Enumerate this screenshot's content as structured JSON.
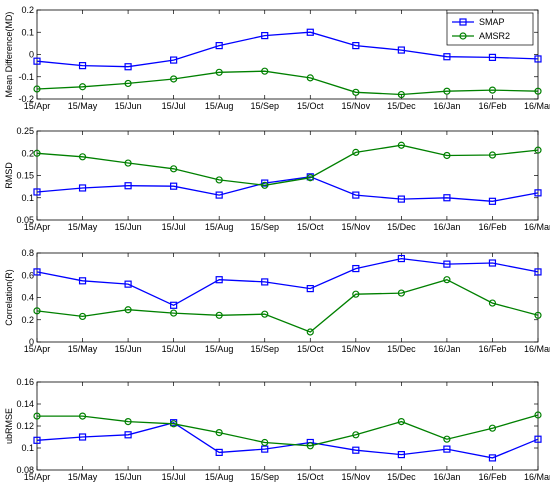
{
  "chart_data": [
    {
      "type": "line",
      "ylabel": "Mean Difference(MD)",
      "ylim": [
        -0.2,
        0.2
      ],
      "yticks": [
        "-0.2",
        "-0.1",
        "0",
        "0.1",
        "0.2"
      ],
      "categories": [
        "15/Apr",
        "15/May",
        "15/Jun",
        "15/Jul",
        "15/Aug",
        "15/Sep",
        "15/Oct",
        "15/Nov",
        "15/Dec",
        "16/Jan",
        "16/Feb",
        "16/Mar"
      ],
      "legend": {
        "position": "top-right"
      },
      "series": [
        {
          "name": "SMAP",
          "color": "#0000ff",
          "marker": "square",
          "values": [
            -0.03,
            -0.05,
            -0.055,
            -0.025,
            0.04,
            0.085,
            0.1,
            0.04,
            0.02,
            -0.01,
            -0.013,
            -0.02
          ]
        },
        {
          "name": "AMSR2",
          "color": "#008000",
          "marker": "circle",
          "values": [
            -0.155,
            -0.145,
            -0.13,
            -0.11,
            -0.08,
            -0.075,
            -0.105,
            -0.17,
            -0.18,
            -0.165,
            -0.16,
            -0.165
          ]
        }
      ]
    },
    {
      "type": "line",
      "ylabel": "RMSD",
      "ylim": [
        0.05,
        0.25
      ],
      "yticks": [
        "0.05",
        "0.1",
        "0.15",
        "0.2",
        "0.25"
      ],
      "categories": [
        "15/Apr",
        "15/May",
        "15/Jun",
        "15/Jul",
        "15/Aug",
        "15/Sep",
        "15/Oct",
        "15/Nov",
        "15/Dec",
        "16/Jan",
        "16/Feb",
        "16/Mar"
      ],
      "series": [
        {
          "name": "SMAP",
          "color": "#0000ff",
          "marker": "square",
          "values": [
            0.113,
            0.122,
            0.127,
            0.126,
            0.106,
            0.133,
            0.147,
            0.106,
            0.097,
            0.1,
            0.092,
            0.111
          ]
        },
        {
          "name": "AMSR2",
          "color": "#008000",
          "marker": "circle",
          "values": [
            0.2,
            0.192,
            0.178,
            0.165,
            0.14,
            0.128,
            0.145,
            0.202,
            0.218,
            0.195,
            0.196,
            0.207
          ]
        }
      ]
    },
    {
      "type": "line",
      "ylabel": "Correlation(R)",
      "ylim": [
        0,
        0.8
      ],
      "yticks": [
        "0",
        "0.2",
        "0.4",
        "0.6",
        "0.8"
      ],
      "categories": [
        "15/Apr",
        "15/May",
        "15/Jun",
        "15/Jul",
        "15/Aug",
        "15/Sep",
        "15/Oct",
        "15/Nov",
        "15/Dec",
        "16/Jan",
        "16/Feb",
        "16/Mar"
      ],
      "series": [
        {
          "name": "SMAP",
          "color": "#0000ff",
          "marker": "square",
          "values": [
            0.63,
            0.55,
            0.52,
            0.33,
            0.56,
            0.54,
            0.48,
            0.66,
            0.75,
            0.7,
            0.71,
            0.63
          ]
        },
        {
          "name": "AMSR2",
          "color": "#008000",
          "marker": "circle",
          "values": [
            0.28,
            0.23,
            0.29,
            0.26,
            0.24,
            0.25,
            0.09,
            0.43,
            0.44,
            0.56,
            0.35,
            0.24
          ]
        }
      ]
    },
    {
      "type": "line",
      "ylabel": "ubRMSE",
      "ylim": [
        0.08,
        0.16
      ],
      "yticks": [
        "0.08",
        "0.1",
        "0.12",
        "0.14",
        "0.16"
      ],
      "categories": [
        "15/Apr",
        "15/May",
        "15/Jun",
        "15/Jul",
        "15/Aug",
        "15/Sep",
        "15/Oct",
        "15/Nov",
        "15/Dec",
        "16/Jan",
        "16/Feb",
        "16/Mar"
      ],
      "series": [
        {
          "name": "SMAP",
          "color": "#0000ff",
          "marker": "square",
          "values": [
            0.107,
            0.11,
            0.112,
            0.123,
            0.096,
            0.099,
            0.105,
            0.098,
            0.094,
            0.099,
            0.091,
            0.108
          ]
        },
        {
          "name": "AMSR2",
          "color": "#008000",
          "marker": "circle",
          "values": [
            0.129,
            0.129,
            0.124,
            0.122,
            0.114,
            0.105,
            0.102,
            0.112,
            0.124,
            0.108,
            0.118,
            0.13
          ]
        }
      ]
    }
  ]
}
